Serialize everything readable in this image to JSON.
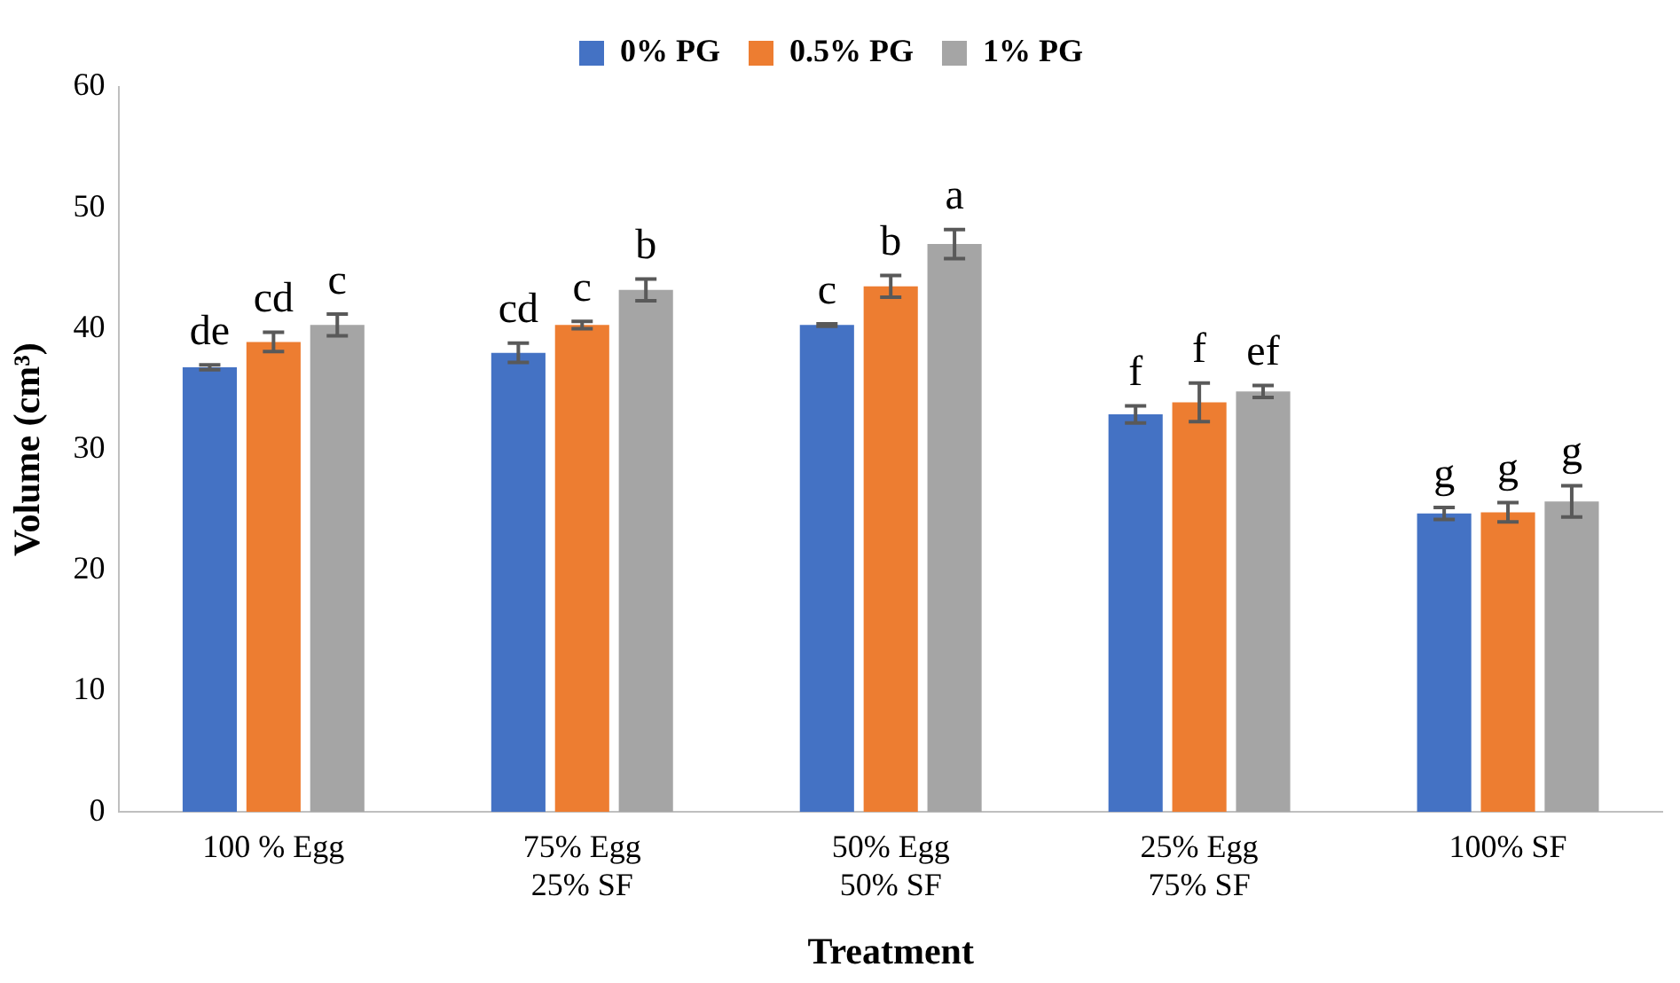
{
  "chart_data": {
    "type": "bar",
    "xlabel": "Treatment",
    "ylabel": "Volume (cm³)",
    "categories": [
      "100 % Egg",
      "75% Egg\n25% SF",
      "50% Egg\n50% SF",
      "25% Egg\n75% SF",
      "100% SF"
    ],
    "series": [
      {
        "name": "0% PG",
        "color": "#4472c4",
        "values": [
          36.8,
          38.0,
          40.3,
          32.9,
          24.7
        ],
        "errors": [
          0.2,
          0.8,
          0.1,
          0.7,
          0.5
        ],
        "value_labels": [
          "de",
          "cd",
          "c",
          "f",
          "g"
        ]
      },
      {
        "name": "0.5% PG",
        "color": "#ed7d31",
        "values": [
          38.9,
          40.3,
          43.5,
          33.9,
          24.8
        ],
        "errors": [
          0.8,
          0.3,
          0.9,
          1.6,
          0.8
        ],
        "value_labels": [
          "cd",
          "c",
          "b",
          "f",
          "g"
        ]
      },
      {
        "name": "1% PG",
        "color": "#a5a5a5",
        "values": [
          40.3,
          43.2,
          47.0,
          34.8,
          25.7
        ],
        "errors": [
          0.9,
          0.9,
          1.2,
          0.5,
          1.3
        ],
        "value_labels": [
          "c",
          "b",
          "a",
          "ef",
          "g"
        ]
      }
    ],
    "ylim": [
      0,
      60
    ],
    "yticks": [
      0,
      10,
      20,
      30,
      40,
      50,
      60
    ],
    "grid": false,
    "legend": "top"
  }
}
